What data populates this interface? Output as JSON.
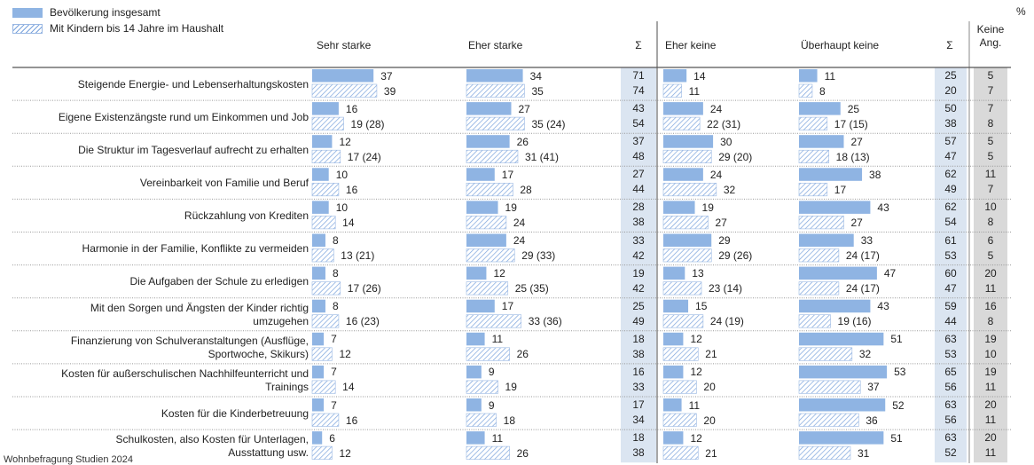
{
  "legend": {
    "series1": "Bevölkerung insgesamt",
    "series2": "Mit Kindern bis 14 Jahre im Haushalt"
  },
  "percent_sign": "%",
  "headers": {
    "sehr_starke": "Sehr starke",
    "eher_starke": "Eher starke",
    "sum1": "Σ",
    "eher_keine": "Eher keine",
    "ueberhaupt_keine": "Überhaupt keine",
    "sum2": "Σ",
    "keine_ang_1": "Keine",
    "keine_ang_2": "Ang."
  },
  "source_note": "Wohnbefragung Studien 2024",
  "colors": {
    "bar_fill": "#8fb4e3",
    "hatch_stroke": "#7aa3dc",
    "sum_bg": "#dbe5f1",
    "keine_bg": "#d9d9d9",
    "grid_line": "#999999"
  },
  "chart_data": {
    "type": "bar",
    "orientation": "horizontal",
    "unit": "%",
    "xlim": [
      0,
      60
    ],
    "series": [
      {
        "name": "Bevölkerung insgesamt",
        "style": "solid"
      },
      {
        "name": "Mit Kindern bis 14 Jahre im Haushalt",
        "style": "hatched"
      }
    ],
    "columns": [
      "Sehr starke",
      "Eher starke",
      "Eher keine",
      "Überhaupt keine"
    ],
    "rows": [
      {
        "label": [
          "Steigende Energie- und Lebenserhaltungskosten"
        ],
        "all": [
          37,
          34,
          14,
          11
        ],
        "kids": [
          39,
          35,
          11,
          8
        ],
        "kids_labels": [
          "39",
          "35",
          "11",
          "8"
        ],
        "sum1": [
          "71",
          "74"
        ],
        "sum2": [
          "25",
          "20"
        ],
        "keine": [
          "5",
          "7"
        ]
      },
      {
        "label": [
          "Eigene Existenzängste rund um Einkommen und Job"
        ],
        "all": [
          16,
          27,
          24,
          25
        ],
        "kids": [
          19,
          35,
          22,
          17
        ],
        "kids_labels": [
          "19 (28)",
          "35 (24)",
          "22 (31)",
          "17 (15)"
        ],
        "sum1": [
          "43",
          "54"
        ],
        "sum2": [
          "50",
          "38"
        ],
        "keine": [
          "7",
          "8"
        ]
      },
      {
        "label": [
          "Die Struktur im Tagesverlauf aufrecht zu erhalten"
        ],
        "all": [
          12,
          26,
          30,
          27
        ],
        "kids": [
          17,
          31,
          29,
          18
        ],
        "kids_labels": [
          "17 (24)",
          "31 (41)",
          "29 (20)",
          "18 (13)"
        ],
        "sum1": [
          "37",
          "48"
        ],
        "sum2": [
          "57",
          "47"
        ],
        "keine": [
          "5",
          "5"
        ]
      },
      {
        "label": [
          "Vereinbarkeit von Familie und Beruf"
        ],
        "all": [
          10,
          17,
          24,
          38
        ],
        "kids": [
          16,
          28,
          32,
          17
        ],
        "kids_labels": [
          "16",
          "28",
          "32",
          "17"
        ],
        "sum1": [
          "27",
          "44"
        ],
        "sum2": [
          "62",
          "49"
        ],
        "keine": [
          "11",
          "7"
        ]
      },
      {
        "label": [
          "Rückzahlung von Krediten"
        ],
        "all": [
          10,
          19,
          19,
          43
        ],
        "kids": [
          14,
          24,
          27,
          27
        ],
        "kids_labels": [
          "14",
          "24",
          "27",
          "27"
        ],
        "sum1": [
          "28",
          "38"
        ],
        "sum2": [
          "62",
          "54"
        ],
        "keine": [
          "10",
          "8"
        ]
      },
      {
        "label": [
          "Harmonie in der Familie, Konflikte zu vermeiden"
        ],
        "all": [
          8,
          24,
          29,
          33
        ],
        "kids": [
          13,
          29,
          29,
          24
        ],
        "kids_labels": [
          "13 (21)",
          "29 (33)",
          "29 (26)",
          "24 (17)"
        ],
        "sum1": [
          "33",
          "42"
        ],
        "sum2": [
          "61",
          "53"
        ],
        "keine": [
          "6",
          "5"
        ]
      },
      {
        "label": [
          "Die Aufgaben der Schule zu erledigen"
        ],
        "all": [
          8,
          12,
          13,
          47
        ],
        "kids": [
          17,
          25,
          23,
          24
        ],
        "kids_labels": [
          "17 (26)",
          "25 (35)",
          "23 (14)",
          "24 (17)"
        ],
        "sum1": [
          "19",
          "42"
        ],
        "sum2": [
          "60",
          "47"
        ],
        "keine": [
          "20",
          "11"
        ]
      },
      {
        "label": [
          "Mit den Sorgen und Ängsten der Kinder richtig",
          "umzugehen"
        ],
        "all": [
          8,
          17,
          15,
          43
        ],
        "kids": [
          16,
          33,
          24,
          19
        ],
        "kids_labels": [
          "16 (23)",
          "33 (36)",
          "24 (19)",
          "19 (16)"
        ],
        "sum1": [
          "25",
          "49"
        ],
        "sum2": [
          "59",
          "44"
        ],
        "keine": [
          "16",
          "8"
        ]
      },
      {
        "label": [
          "Finanzierung von Schulveranstaltungen (Ausflüge,",
          "Sportwoche, Skikurs)"
        ],
        "all": [
          7,
          11,
          12,
          51
        ],
        "kids": [
          12,
          26,
          21,
          32
        ],
        "kids_labels": [
          "12",
          "26",
          "21",
          "32"
        ],
        "sum1": [
          "18",
          "38"
        ],
        "sum2": [
          "63",
          "53"
        ],
        "keine": [
          "19",
          "10"
        ]
      },
      {
        "label": [
          "Kosten für außerschulischen Nachhilfeunterricht und",
          "Trainings"
        ],
        "all": [
          7,
          9,
          12,
          53
        ],
        "kids": [
          14,
          19,
          20,
          37
        ],
        "kids_labels": [
          "14",
          "19",
          "20",
          "37"
        ],
        "sum1": [
          "16",
          "33"
        ],
        "sum2": [
          "65",
          "56"
        ],
        "keine": [
          "19",
          "11"
        ]
      },
      {
        "label": [
          "Kosten für die Kinderbetreuung"
        ],
        "all": [
          7,
          9,
          11,
          52
        ],
        "kids": [
          16,
          18,
          20,
          36
        ],
        "kids_labels": [
          "16",
          "18",
          "20",
          "36"
        ],
        "sum1": [
          "17",
          "34"
        ],
        "sum2": [
          "63",
          "56"
        ],
        "keine": [
          "20",
          "11"
        ]
      },
      {
        "label": [
          "Schulkosten, also Kosten für Unterlagen,",
          "Ausstattung usw."
        ],
        "all": [
          6,
          11,
          12,
          51
        ],
        "kids": [
          12,
          26,
          21,
          31
        ],
        "kids_labels": [
          "12",
          "26",
          "21",
          "31"
        ],
        "sum1": [
          "18",
          "38"
        ],
        "sum2": [
          "63",
          "52"
        ],
        "keine": [
          "20",
          "11"
        ]
      }
    ]
  }
}
